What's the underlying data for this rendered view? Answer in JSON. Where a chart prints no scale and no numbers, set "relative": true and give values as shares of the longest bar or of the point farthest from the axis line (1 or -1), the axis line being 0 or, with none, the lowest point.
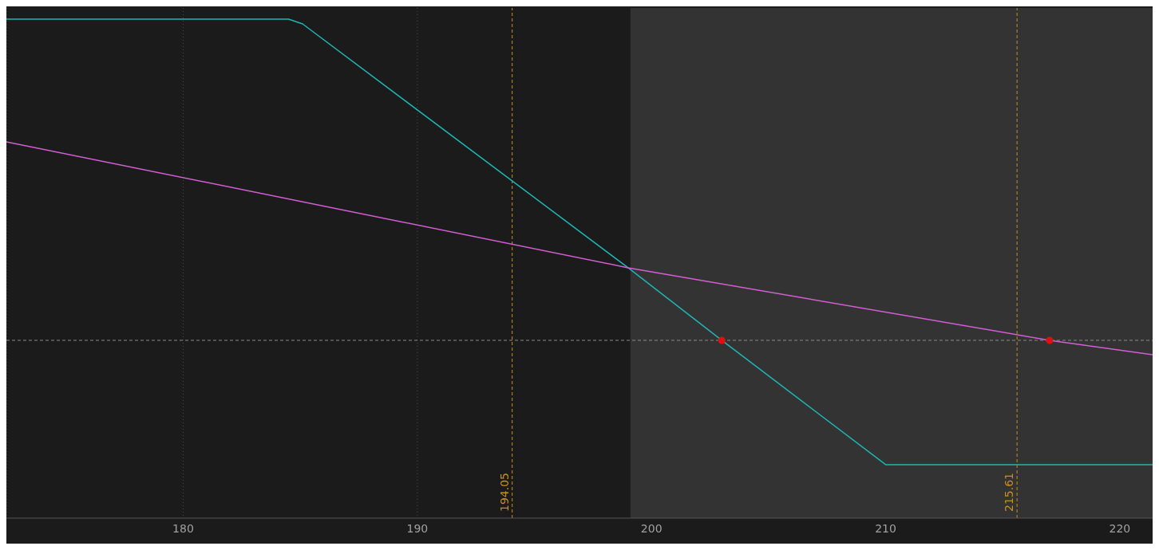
{
  "chart_data": {
    "type": "line",
    "relative": true,
    "xlim": [
      172.45,
      221.4
    ],
    "xticks": [
      180,
      190,
      200,
      210,
      220
    ],
    "grid": "x",
    "series": [
      {
        "color": "#1fb5b5",
        "x": [
          172.45,
          184.5,
          185.1,
          199,
          203,
          210,
          221.4
        ],
        "values": [
          1,
          1,
          0.985,
          0.226,
          0,
          -0.387,
          -0.387
        ]
      },
      {
        "color": "#d35fd3",
        "x": [
          172.45,
          199,
          217,
          221.4
        ],
        "values": [
          0.618,
          0.226,
          0,
          -0.045
        ]
      },
      {
        "type": "scatter",
        "color": "#e01010",
        "marker": "circle",
        "x": [
          203,
          217
        ],
        "values": [
          0,
          0
        ]
      }
    ],
    "ref_lines": [
      {
        "axis": "x",
        "value": 194.05,
        "label": "194.05",
        "color": "#c8901a",
        "line_style": "dashed"
      },
      {
        "axis": "x",
        "value": 215.61,
        "label": "215.61",
        "color": "#c8901a",
        "line_style": "dashed"
      },
      {
        "axis": "y",
        "value": 0,
        "color": "#8a8a8a",
        "line_style": "dashed"
      }
    ],
    "bands": [
      {
        "axis": "x",
        "from": 199.1,
        "to": 221.4,
        "color": "#333333"
      }
    ]
  }
}
